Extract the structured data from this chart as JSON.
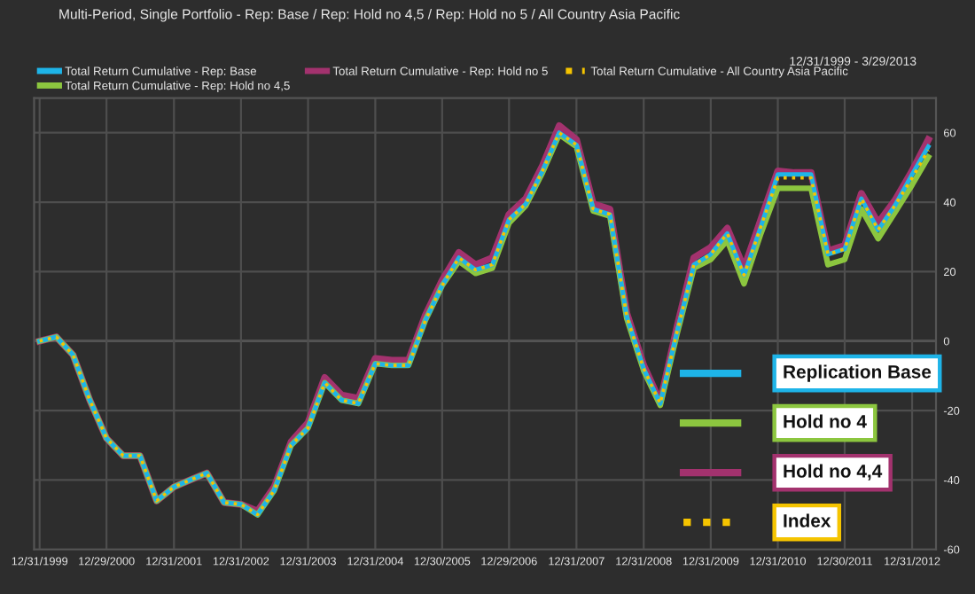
{
  "chart_data": {
    "type": "line",
    "title": "Multi-Period, Single Portfolio - Rep: Base / Rep: Hold no 4,5 / Rep: Hold no 5 / All Country Asia Pacific",
    "subtitle": "12/31/1999 - 3/29/2013",
    "x": [
      "1999-12-31",
      "2000-03-31",
      "2000-06-30",
      "2000-09-29",
      "2000-12-29",
      "2001-03-30",
      "2001-06-29",
      "2001-09-28",
      "2001-12-31",
      "2002-03-29",
      "2002-06-28",
      "2002-09-30",
      "2002-12-31",
      "2003-03-31",
      "2003-06-30",
      "2003-09-30",
      "2003-12-31",
      "2004-03-31",
      "2004-06-30",
      "2004-09-30",
      "2004-12-31",
      "2005-03-31",
      "2005-06-30",
      "2005-09-30",
      "2005-12-30",
      "2006-03-31",
      "2006-06-30",
      "2006-09-29",
      "2006-12-29",
      "2007-03-30",
      "2007-06-29",
      "2007-09-28",
      "2007-12-31",
      "2008-03-31",
      "2008-06-30",
      "2008-09-30",
      "2008-12-31",
      "2009-03-31",
      "2009-06-30",
      "2009-09-30",
      "2009-12-31",
      "2010-03-31",
      "2010-06-30",
      "2010-09-30",
      "2010-12-31",
      "2011-03-31",
      "2011-06-30",
      "2011-09-30",
      "2011-12-30",
      "2012-03-30",
      "2012-06-29",
      "2012-09-28",
      "2012-12-31",
      "2013-03-29"
    ],
    "series": [
      {
        "name": "Total Return Cumulative - Rep: Base",
        "color": "#1eb4e8",
        "line_style": "solid",
        "values": [
          0,
          1.2,
          -4,
          -17,
          -28,
          -33,
          -33,
          -46,
          -42,
          -40,
          -38,
          -46.5,
          -47,
          -50,
          -43,
          -30,
          -25,
          -12,
          -17,
          -18,
          -6.5,
          -7,
          -7,
          6,
          16,
          24,
          20.5,
          22,
          35,
          39.5,
          49,
          60,
          56.5,
          38,
          36.5,
          7,
          -8,
          -18,
          2.5,
          22,
          25,
          31,
          19,
          33,
          48,
          48,
          48,
          25,
          26.5,
          41,
          32,
          39,
          48,
          56
        ]
      },
      {
        "name": "Total Return Cumulative - Rep: Hold no 4,5",
        "color": "#8cc63f",
        "line_style": "solid",
        "values": [
          0,
          1.2,
          -4,
          -17,
          -28,
          -33,
          -33,
          -46,
          -42,
          -40,
          -38,
          -46.5,
          -47,
          -50,
          -43,
          -30,
          -25,
          -12,
          -17,
          -18,
          -6.5,
          -7,
          -7,
          6,
          16,
          23,
          19.5,
          21,
          34,
          39,
          48.5,
          59.5,
          56,
          37.5,
          36,
          6.5,
          -8.5,
          -18.5,
          2,
          21,
          23.5,
          29,
          16.5,
          31,
          44,
          44,
          44,
          22,
          23.5,
          38,
          29.5,
          37,
          45,
          53
        ]
      },
      {
        "name": "Total Return Cumulative - Rep: Hold no 5",
        "color": "#a3326e",
        "line_style": "solid",
        "values": [
          0,
          1.2,
          -4,
          -17,
          -28,
          -33,
          -33,
          -46,
          -42,
          -40,
          -38,
          -46.5,
          -47,
          -49,
          -42,
          -29,
          -23.5,
          -10.5,
          -15.5,
          -16.5,
          -5,
          -5.5,
          -5.5,
          7.5,
          17.5,
          25.5,
          22,
          24,
          36.5,
          41,
          50.5,
          62,
          58,
          39.5,
          38,
          8,
          -7,
          -17.5,
          4,
          24,
          27,
          32.5,
          21,
          35,
          49,
          48.5,
          48.5,
          26,
          27.5,
          42.5,
          34,
          40.5,
          49,
          58
        ]
      },
      {
        "name": "Total Return Cumulative - All Country Asia Pacific",
        "color": "#f5c400",
        "line_style": "dotted",
        "values": [
          0,
          1.2,
          -4,
          -17,
          -28,
          -33,
          -33,
          -46,
          -42,
          -40,
          -38,
          -46.5,
          -47,
          -50,
          -43,
          -30,
          -25,
          -12,
          -17,
          -18,
          -6.5,
          -7,
          -7,
          6,
          16,
          24,
          20.5,
          22,
          35,
          39.5,
          49,
          60,
          56.5,
          38,
          36.5,
          7,
          -8,
          -18,
          2.5,
          22,
          25,
          31,
          19,
          33,
          47,
          47,
          47,
          25,
          26.5,
          41,
          32,
          39,
          47,
          55
        ]
      }
    ],
    "annotations": [
      "Replication Base",
      "Hold no 4",
      "Hold no 4,4",
      "Index"
    ],
    "xlim": [
      "1999-12-01",
      "2013-05-10"
    ],
    "xticks": [
      {
        "value": "1999-12-31",
        "label": "12/31/1999"
      },
      {
        "value": "2000-12-29",
        "label": "12/29/2000"
      },
      {
        "value": "2001-12-31",
        "label": "12/31/2001"
      },
      {
        "value": "2002-12-31",
        "label": "12/31/2002"
      },
      {
        "value": "2003-12-31",
        "label": "12/31/2003"
      },
      {
        "value": "2004-12-31",
        "label": "12/31/2004"
      },
      {
        "value": "2005-12-30",
        "label": "12/30/2005"
      },
      {
        "value": "2006-12-29",
        "label": "12/29/2006"
      },
      {
        "value": "2007-12-31",
        "label": "12/31/2007"
      },
      {
        "value": "2008-12-31",
        "label": "12/31/2008"
      },
      {
        "value": "2009-12-31",
        "label": "12/31/2009"
      },
      {
        "value": "2010-12-31",
        "label": "12/31/2010"
      },
      {
        "value": "2011-12-30",
        "label": "12/30/2011"
      },
      {
        "value": "2012-12-31",
        "label": "12/31/2012"
      }
    ],
    "ylim": [
      -60,
      70
    ],
    "yticks": [
      -60,
      -40,
      -20,
      0,
      20,
      40,
      60
    ],
    "grid": true,
    "legend": "top",
    "marker": "none"
  }
}
